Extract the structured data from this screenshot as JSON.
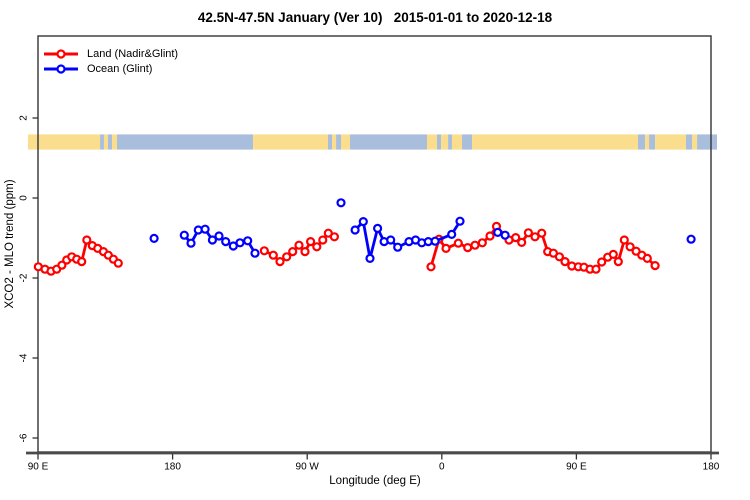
{
  "chart_data": {
    "type": "line",
    "title": "42.5N-47.5N January (Ver 10)   2015-01-01 to 2020-12-18",
    "xlabel": "Longitude (deg E)",
    "ylabel": "XCO2 - MLO trend (ppm)",
    "xlim": [
      90,
      540
    ],
    "ylim": [
      -6.35,
      4.05
    ],
    "grid": false,
    "legend_position": "top-left",
    "x_ticks": [
      {
        "v": 90,
        "label": "90 E"
      },
      {
        "v": 180,
        "label": "180"
      },
      {
        "v": 270,
        "label": "90 W"
      },
      {
        "v": 360,
        "label": "0"
      },
      {
        "v": 450,
        "label": "90 E"
      },
      {
        "v": 540,
        "label": "180"
      }
    ],
    "y_ticks": [
      {
        "v": 2,
        "label": "2"
      },
      {
        "v": 0,
        "label": "0"
      },
      {
        "v": -2,
        "label": "-2"
      },
      {
        "v": -4,
        "label": "-4"
      },
      {
        "v": -6,
        "label": "-6"
      }
    ],
    "map_band": {
      "description": "world land/ocean strip for latitude band 42.5N-47.5N",
      "ppm_top": 1.59,
      "ppm_bottom": 1.21,
      "land_color": "#fbde8d",
      "ocean_color": "#a9bedc",
      "segments": [
        {
          "from": 90.0,
          "to": 131.5,
          "type": "land"
        },
        {
          "from": 131.5,
          "to": 134.1,
          "type": "ocean"
        },
        {
          "from": 134.1,
          "to": 136.8,
          "type": "land"
        },
        {
          "from": 136.8,
          "to": 139.5,
          "type": "ocean"
        },
        {
          "from": 139.5,
          "to": 142.8,
          "type": "land"
        },
        {
          "from": 142.8,
          "to": 233.8,
          "type": "ocean"
        },
        {
          "from": 233.8,
          "to": 283.9,
          "type": "land"
        },
        {
          "from": 283.9,
          "to": 286.6,
          "type": "ocean"
        },
        {
          "from": 286.6,
          "to": 289.3,
          "type": "land"
        },
        {
          "from": 289.3,
          "to": 292.6,
          "type": "ocean"
        },
        {
          "from": 292.6,
          "to": 298.6,
          "type": "land"
        },
        {
          "from": 298.6,
          "to": 350.1,
          "type": "ocean"
        },
        {
          "from": 350.1,
          "to": 356.8,
          "type": "land"
        },
        {
          "from": 356.8,
          "to": 359.5,
          "type": "ocean"
        },
        {
          "from": 359.5,
          "to": 364.2,
          "type": "land"
        },
        {
          "from": 364.2,
          "to": 366.8,
          "type": "ocean"
        },
        {
          "from": 366.8,
          "to": 373.5,
          "type": "land"
        },
        {
          "from": 373.5,
          "to": 380.2,
          "type": "ocean"
        },
        {
          "from": 380.2,
          "to": 491.2,
          "type": "land"
        },
        {
          "from": 491.2,
          "to": 495.9,
          "type": "ocean"
        },
        {
          "from": 495.9,
          "to": 498.6,
          "type": "land"
        },
        {
          "from": 498.6,
          "to": 502.6,
          "type": "ocean"
        },
        {
          "from": 502.6,
          "to": 523.3,
          "type": "land"
        },
        {
          "from": 523.3,
          "to": 527.3,
          "type": "ocean"
        },
        {
          "from": 527.3,
          "to": 530.7,
          "type": "land"
        },
        {
          "from": 530.7,
          "to": 540.0,
          "type": "ocean"
        }
      ]
    },
    "series": [
      {
        "name": "Land (Nadir&Glint)",
        "color": "#ff0000",
        "marker": "open-circle",
        "chains": [
          [
            [
              90.2,
              -1.72
            ],
            [
              94.7,
              -1.78
            ],
            [
              98.7,
              -1.83
            ],
            [
              102.5,
              -1.78
            ],
            [
              106.0,
              -1.68
            ],
            [
              109.2,
              -1.55
            ],
            [
              112.5,
              -1.47
            ],
            [
              115.9,
              -1.53
            ],
            [
              119.2,
              -1.59
            ],
            [
              122.6,
              -1.05
            ],
            [
              126.3,
              -1.19
            ],
            [
              129.9,
              -1.26
            ],
            [
              133.7,
              -1.34
            ],
            [
              137.0,
              -1.43
            ],
            [
              140.4,
              -1.53
            ],
            [
              143.7,
              -1.63
            ]
          ],
          [
            [
              241.3,
              -1.32
            ],
            [
              247.3,
              -1.43
            ],
            [
              251.8,
              -1.59
            ],
            [
              256.3,
              -1.47
            ],
            [
              260.3,
              -1.34
            ],
            [
              264.5,
              -1.18
            ],
            [
              268.5,
              -1.34
            ],
            [
              272.3,
              -1.09
            ],
            [
              276.4,
              -1.22
            ],
            [
              280.4,
              -1.05
            ],
            [
              284.1,
              -0.88
            ],
            [
              288.2,
              -0.97
            ]
          ],
          [
            [
              352.8,
              -1.72
            ],
            [
              358.1,
              -1.03
            ],
            [
              362.8,
              -1.26
            ],
            [
              371.0,
              -1.13
            ],
            [
              377.3,
              -1.24
            ],
            [
              382.2,
              -1.18
            ],
            [
              387.1,
              -1.12
            ],
            [
              392.2,
              -0.95
            ],
            [
              396.6,
              -0.71
            ],
            [
              404.9,
              -1.05
            ],
            [
              409.4,
              -0.99
            ],
            [
              413.4,
              -1.11
            ],
            [
              417.9,
              -0.87
            ],
            [
              422.3,
              -0.97
            ],
            [
              426.8,
              -0.88
            ],
            [
              430.8,
              -1.34
            ],
            [
              434.6,
              -1.38
            ],
            [
              438.6,
              -1.47
            ],
            [
              442.4,
              -1.59
            ],
            [
              446.9,
              -1.7
            ],
            [
              451.3,
              -1.72
            ],
            [
              455.1,
              -1.73
            ],
            [
              459.1,
              -1.78
            ],
            [
              463.1,
              -1.78
            ],
            [
              466.9,
              -1.6
            ],
            [
              470.9,
              -1.48
            ],
            [
              474.7,
              -1.41
            ],
            [
              478.0,
              -1.59
            ],
            [
              482.0,
              -1.05
            ],
            [
              485.9,
              -1.22
            ],
            [
              489.9,
              -1.33
            ],
            [
              493.7,
              -1.43
            ],
            [
              497.4,
              -1.51
            ],
            [
              502.6,
              -1.69
            ]
          ]
        ]
      },
      {
        "name": "Ocean (Glint)",
        "color": "#0000ff",
        "marker": "open-circle",
        "chains": [
          [
            [
              167.6,
              -1.01
            ]
          ],
          [
            [
              187.8,
              -0.93
            ],
            [
              192.3,
              -1.13
            ],
            [
              197.2,
              -0.8
            ],
            [
              201.7,
              -0.78
            ],
            [
              206.6,
              -1.05
            ],
            [
              211.0,
              -0.95
            ],
            [
              215.5,
              -1.09
            ],
            [
              220.6,
              -1.2
            ],
            [
              225.1,
              -1.12
            ],
            [
              230.2,
              -1.07
            ],
            [
              235.1,
              -1.38
            ]
          ],
          [
            [
              292.6,
              -0.12
            ]
          ],
          [
            [
              302.0,
              -0.8
            ],
            [
              307.5,
              -0.59
            ],
            [
              312.0,
              -1.51
            ],
            [
              317.1,
              -0.76
            ],
            [
              321.4,
              -1.09
            ],
            [
              325.8,
              -1.05
            ],
            [
              330.5,
              -1.23
            ],
            [
              338.1,
              -1.09
            ],
            [
              342.5,
              -1.05
            ],
            [
              346.6,
              -1.12
            ],
            [
              351.0,
              -1.09
            ],
            [
              355.5,
              -1.08
            ],
            [
              366.6,
              -0.91
            ],
            [
              372.2,
              -0.58
            ]
          ],
          [
            [
              397.4,
              -0.86
            ],
            [
              402.3,
              -0.93
            ]
          ],
          [
            [
              526.7,
              -1.03
            ]
          ]
        ]
      }
    ]
  }
}
